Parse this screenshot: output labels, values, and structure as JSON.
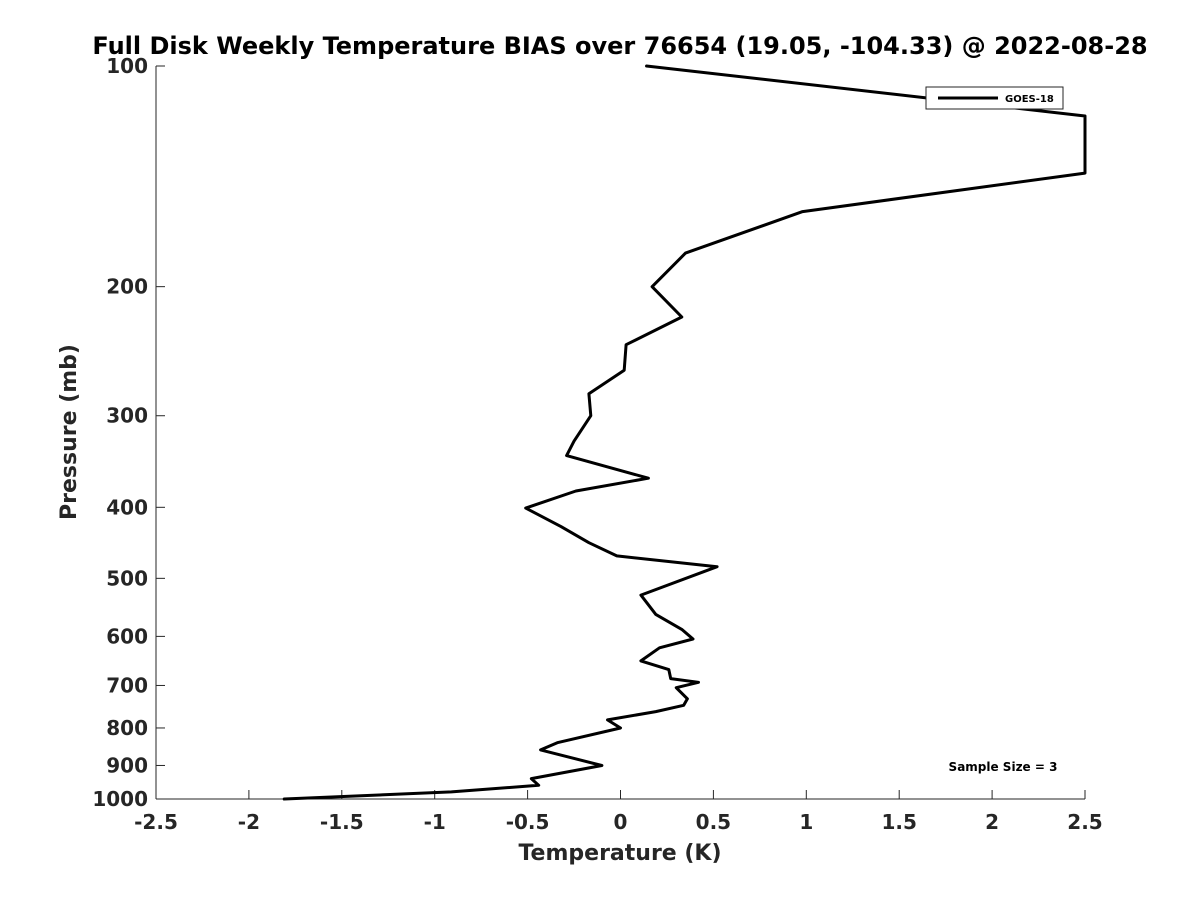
{
  "chart_data": {
    "type": "line",
    "title": "Full Disk Weekly Temperature BIAS over 76654 (19.05, -104.33) @ 2022-08-28",
    "xlabel": "Temperature (K)",
    "ylabel": "Pressure (mb)",
    "xlim": [
      -2.5,
      2.5
    ],
    "ylim": [
      100,
      1000
    ],
    "y_scale": "log",
    "y_reversed": true,
    "grid": false,
    "legend_position": "top-right",
    "x_ticks": [
      -2.5,
      -2,
      -1.5,
      -1,
      -0.5,
      0,
      0.5,
      1,
      1.5,
      2,
      2.5
    ],
    "x_tick_labels": [
      "-2.5",
      "-2",
      "-1.5",
      "-1",
      "-0.5",
      "0",
      "0.5",
      "1",
      "1.5",
      "2",
      "2.5"
    ],
    "y_ticks": [
      100,
      200,
      300,
      400,
      500,
      600,
      700,
      800,
      900,
      1000
    ],
    "y_tick_labels": [
      "100",
      "200",
      "300",
      "400",
      "500",
      "600",
      "700",
      "800",
      "900",
      "1000"
    ],
    "annotation": "Sample Size = 3",
    "line_color": "#000000",
    "series": [
      {
        "name": "GOES-18",
        "points": [
          {
            "x": 0.14,
            "y": 100
          },
          {
            "x": 2.5,
            "y": 117
          },
          {
            "x": 2.5,
            "y": 140
          },
          {
            "x": 0.98,
            "y": 158
          },
          {
            "x": 0.35,
            "y": 180
          },
          {
            "x": 0.17,
            "y": 200
          },
          {
            "x": 0.33,
            "y": 220
          },
          {
            "x": 0.03,
            "y": 240
          },
          {
            "x": 0.02,
            "y": 260
          },
          {
            "x": -0.17,
            "y": 280
          },
          {
            "x": -0.16,
            "y": 300
          },
          {
            "x": -0.25,
            "y": 325
          },
          {
            "x": -0.29,
            "y": 340
          },
          {
            "x": 0.15,
            "y": 365
          },
          {
            "x": -0.24,
            "y": 380
          },
          {
            "x": -0.51,
            "y": 401
          },
          {
            "x": -0.32,
            "y": 425
          },
          {
            "x": -0.17,
            "y": 447
          },
          {
            "x": -0.02,
            "y": 466
          },
          {
            "x": 0.52,
            "y": 482
          },
          {
            "x": 0.11,
            "y": 527
          },
          {
            "x": 0.19,
            "y": 560
          },
          {
            "x": 0.33,
            "y": 587
          },
          {
            "x": 0.39,
            "y": 605
          },
          {
            "x": 0.21,
            "y": 622
          },
          {
            "x": 0.11,
            "y": 648
          },
          {
            "x": 0.26,
            "y": 666
          },
          {
            "x": 0.27,
            "y": 685
          },
          {
            "x": 0.42,
            "y": 693
          },
          {
            "x": 0.3,
            "y": 705
          },
          {
            "x": 0.36,
            "y": 730
          },
          {
            "x": 0.34,
            "y": 745
          },
          {
            "x": 0.19,
            "y": 760
          },
          {
            "x": -0.07,
            "y": 780
          },
          {
            "x": 0.0,
            "y": 800
          },
          {
            "x": -0.34,
            "y": 838
          },
          {
            "x": -0.43,
            "y": 857
          },
          {
            "x": -0.1,
            "y": 900
          },
          {
            "x": -0.48,
            "y": 938
          },
          {
            "x": -0.44,
            "y": 958
          },
          {
            "x": -0.91,
            "y": 978
          },
          {
            "x": -1.81,
            "y": 1000
          }
        ]
      }
    ]
  }
}
